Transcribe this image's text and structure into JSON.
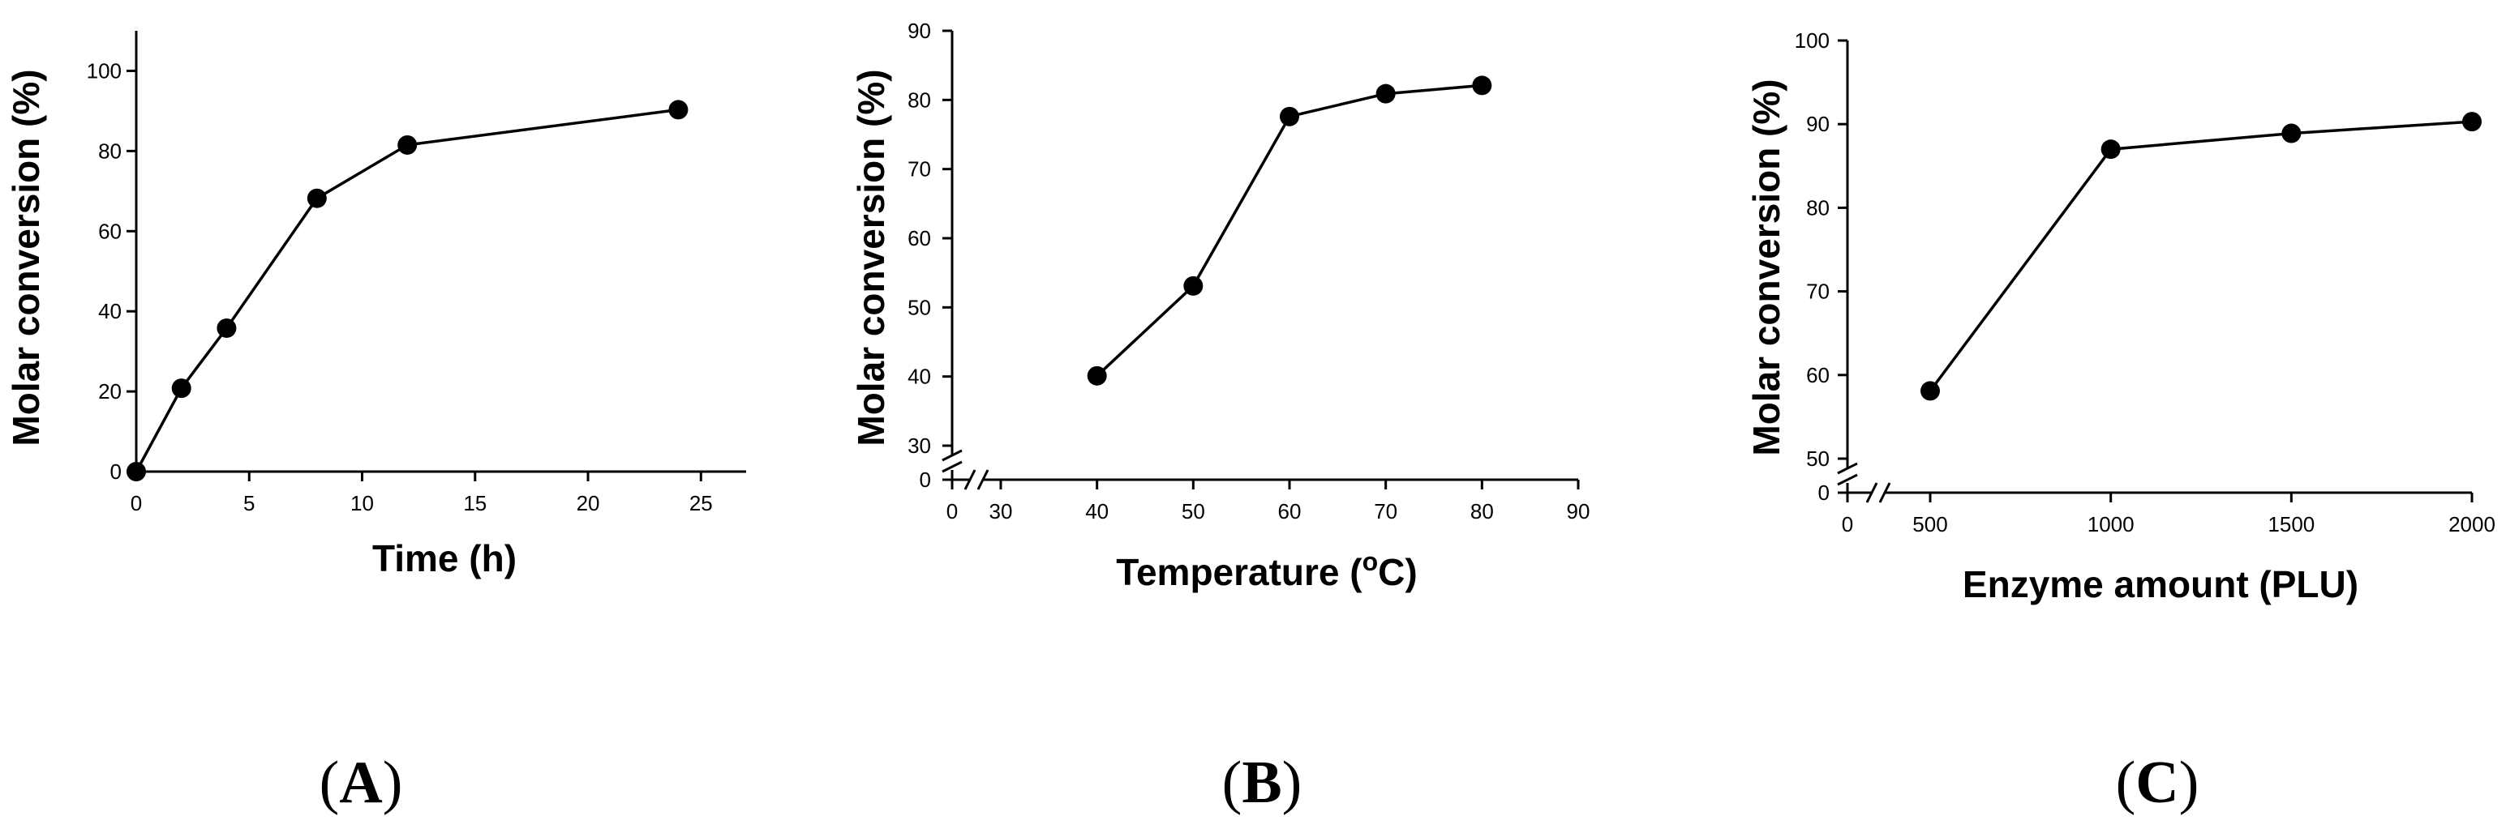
{
  "figure": {
    "panel_labels": [
      "A",
      "B",
      "C"
    ]
  },
  "chart_data": [
    {
      "type": "line",
      "panel": "A",
      "title": "",
      "xlabel": "Time (h)",
      "ylabel": "Molar conversion (%)",
      "xlim": [
        0,
        27
      ],
      "ylim": [
        0,
        110
      ],
      "xticks": [
        0,
        5,
        10,
        15,
        20,
        25
      ],
      "yticks": [
        0,
        20,
        40,
        60,
        80,
        100
      ],
      "x": [
        0,
        2,
        4,
        8,
        12,
        24
      ],
      "values": [
        0,
        20.8,
        35.8,
        68.2,
        81.5,
        90.3
      ]
    },
    {
      "type": "line",
      "panel": "B",
      "title": "",
      "xlabel": "Temperature (",
      "xlabel_sup": "o",
      "xlabel_tail": "C)",
      "ylabel": "Molar conversion (%)",
      "xlim": [
        0,
        90
      ],
      "ylim": [
        0,
        90
      ],
      "axis_break": {
        "x": [
          0,
          30
        ],
        "y": [
          0,
          30
        ]
      },
      "xticks": [
        0,
        30,
        40,
        50,
        60,
        70,
        80,
        90
      ],
      "yticks": [
        0,
        30,
        40,
        50,
        60,
        70,
        80,
        90
      ],
      "x": [
        40,
        50,
        60,
        70,
        80
      ],
      "values": [
        40.1,
        53.1,
        77.6,
        80.9,
        82.1
      ]
    },
    {
      "type": "line",
      "panel": "C",
      "title": "",
      "xlabel": "Enzyme amount (PLU)",
      "ylabel": "Molar conversion (%)",
      "xlim": [
        0,
        2000
      ],
      "ylim": [
        0,
        100
      ],
      "axis_break": {
        "x": [
          0,
          500
        ],
        "y": [
          0,
          50
        ]
      },
      "xticks": [
        0,
        500,
        1000,
        1500,
        2000
      ],
      "yticks": [
        0,
        50,
        60,
        70,
        80,
        90,
        100
      ],
      "x": [
        500,
        1000,
        1500,
        2000
      ],
      "values": [
        58.1,
        87.0,
        88.9,
        90.3
      ]
    }
  ]
}
